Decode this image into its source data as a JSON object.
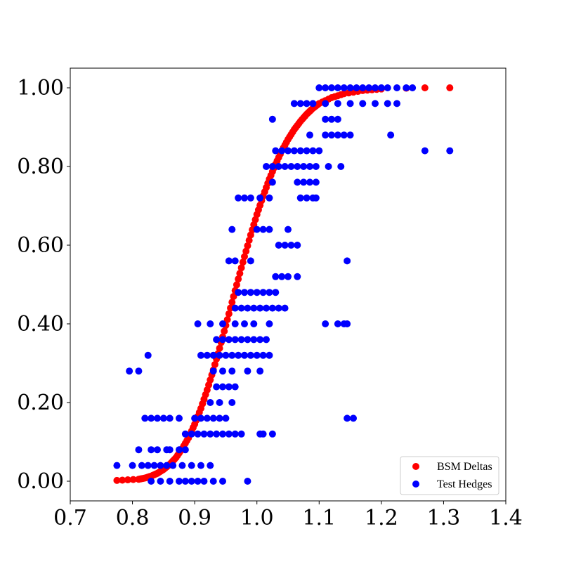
{
  "chart_data": {
    "type": "scatter",
    "title": "",
    "xlabel": "",
    "ylabel": "",
    "xlim": [
      0.7,
      1.4
    ],
    "ylim": [
      -0.05,
      1.05
    ],
    "x_ticks": [
      0.7,
      0.8,
      0.9,
      1.0,
      1.1,
      1.2,
      1.3,
      1.4
    ],
    "x_tick_labels": [
      "0.7",
      "0.8",
      "0.9",
      "1.0",
      "1.1",
      "1.2",
      "1.3",
      "1.4"
    ],
    "y_ticks": [
      0.0,
      0.2,
      0.4,
      0.6,
      0.8,
      1.0
    ],
    "y_tick_labels": [
      "0.00",
      "0.20",
      "0.40",
      "0.60",
      "0.80",
      "1.00"
    ],
    "grid": false,
    "legend_position": "bottom-right",
    "series": [
      {
        "name": "BSM Deltas",
        "color": "#ff0000",
        "points": [
          [
            0.775,
            0.002
          ],
          [
            0.81,
            0.005
          ],
          [
            0.82,
            0.008
          ],
          [
            0.83,
            0.013
          ],
          [
            0.84,
            0.02
          ],
          [
            0.85,
            0.03
          ],
          [
            0.86,
            0.043
          ],
          [
            0.87,
            0.06
          ],
          [
            0.88,
            0.083
          ],
          [
            0.89,
            0.11
          ],
          [
            0.9,
            0.145
          ],
          [
            0.91,
            0.185
          ],
          [
            0.92,
            0.232
          ],
          [
            0.93,
            0.283
          ],
          [
            0.94,
            0.338
          ],
          [
            0.95,
            0.396
          ],
          [
            0.96,
            0.455
          ],
          [
            0.97,
            0.514
          ],
          [
            0.98,
            0.571
          ],
          [
            0.99,
            0.626
          ],
          [
            1.0,
            0.678
          ],
          [
            1.01,
            0.725
          ],
          [
            1.02,
            0.768
          ],
          [
            1.03,
            0.806
          ],
          [
            1.04,
            0.84
          ],
          [
            1.05,
            0.869
          ],
          [
            1.06,
            0.894
          ],
          [
            1.07,
            0.915
          ],
          [
            1.08,
            0.933
          ],
          [
            1.09,
            0.948
          ],
          [
            1.1,
            0.96
          ],
          [
            1.12,
            0.975
          ],
          [
            1.14,
            0.985
          ],
          [
            1.17,
            0.993
          ],
          [
            1.2,
            0.997
          ],
          [
            1.24,
            0.999
          ],
          [
            1.27,
            1.0
          ],
          [
            1.31,
            1.0
          ]
        ]
      },
      {
        "name": "Test Hedges",
        "color": "#0000ff",
        "points": [
          [
            0.775,
            0.04
          ],
          [
            0.795,
            0.28
          ],
          [
            0.81,
            0.28
          ],
          [
            0.825,
            0.32
          ],
          [
            0.81,
            0.08
          ],
          [
            0.83,
            0.08
          ],
          [
            0.84,
            0.08
          ],
          [
            0.855,
            0.08
          ],
          [
            0.86,
            0.08
          ],
          [
            0.875,
            0.08
          ],
          [
            0.885,
            0.08
          ],
          [
            0.8,
            0.04
          ],
          [
            0.815,
            0.04
          ],
          [
            0.825,
            0.04
          ],
          [
            0.835,
            0.04
          ],
          [
            0.845,
            0.04
          ],
          [
            0.855,
            0.04
          ],
          [
            0.865,
            0.04
          ],
          [
            0.88,
            0.04
          ],
          [
            0.895,
            0.04
          ],
          [
            0.91,
            0.04
          ],
          [
            0.925,
            0.04
          ],
          [
            0.82,
            0.16
          ],
          [
            0.83,
            0.16
          ],
          [
            0.84,
            0.16
          ],
          [
            0.85,
            0.16
          ],
          [
            0.86,
            0.16
          ],
          [
            0.875,
            0.16
          ],
          [
            0.9,
            0.16
          ],
          [
            0.91,
            0.16
          ],
          [
            0.92,
            0.16
          ],
          [
            0.93,
            0.16
          ],
          [
            0.94,
            0.16
          ],
          [
            0.95,
            0.16
          ],
          [
            0.83,
            0.0
          ],
          [
            0.845,
            0.0
          ],
          [
            0.86,
            0.0
          ],
          [
            0.875,
            0.0
          ],
          [
            0.885,
            0.0
          ],
          [
            0.895,
            0.0
          ],
          [
            0.905,
            0.0
          ],
          [
            0.915,
            0.0
          ],
          [
            0.93,
            0.0
          ],
          [
            0.945,
            0.0
          ],
          [
            0.985,
            0.0
          ],
          [
            0.885,
            0.12
          ],
          [
            0.895,
            0.12
          ],
          [
            0.905,
            0.12
          ],
          [
            0.915,
            0.12
          ],
          [
            0.925,
            0.12
          ],
          [
            0.935,
            0.12
          ],
          [
            0.945,
            0.12
          ],
          [
            0.955,
            0.12
          ],
          [
            0.965,
            0.12
          ],
          [
            0.975,
            0.12
          ],
          [
            1.005,
            0.12
          ],
          [
            1.01,
            0.12
          ],
          [
            1.025,
            0.12
          ],
          [
            0.925,
            0.2
          ],
          [
            0.96,
            0.2
          ],
          [
            0.94,
            0.2
          ],
          [
            0.905,
            0.4
          ],
          [
            0.925,
            0.4
          ],
          [
            0.945,
            0.4
          ],
          [
            0.965,
            0.4
          ],
          [
            0.98,
            0.4
          ],
          [
            0.995,
            0.4
          ],
          [
            1.02,
            0.4
          ],
          [
            0.91,
            0.32
          ],
          [
            0.92,
            0.32
          ],
          [
            0.93,
            0.32
          ],
          [
            0.94,
            0.32
          ],
          [
            0.95,
            0.32
          ],
          [
            0.96,
            0.32
          ],
          [
            0.97,
            0.32
          ],
          [
            0.98,
            0.32
          ],
          [
            0.99,
            0.32
          ],
          [
            1.0,
            0.32
          ],
          [
            1.01,
            0.32
          ],
          [
            1.02,
            0.32
          ],
          [
            0.935,
            0.36
          ],
          [
            0.945,
            0.36
          ],
          [
            0.955,
            0.36
          ],
          [
            0.965,
            0.36
          ],
          [
            0.975,
            0.36
          ],
          [
            0.985,
            0.36
          ],
          [
            0.995,
            0.36
          ],
          [
            1.005,
            0.36
          ],
          [
            1.015,
            0.36
          ],
          [
            0.93,
            0.28
          ],
          [
            0.945,
            0.28
          ],
          [
            0.96,
            0.28
          ],
          [
            0.985,
            0.28
          ],
          [
            1.005,
            0.28
          ],
          [
            0.935,
            0.24
          ],
          [
            0.945,
            0.24
          ],
          [
            0.955,
            0.24
          ],
          [
            0.965,
            0.24
          ],
          [
            0.97,
            0.48
          ],
          [
            0.98,
            0.48
          ],
          [
            0.99,
            0.48
          ],
          [
            1.0,
            0.48
          ],
          [
            1.01,
            0.48
          ],
          [
            1.02,
            0.48
          ],
          [
            1.03,
            0.48
          ],
          [
            0.965,
            0.44
          ],
          [
            0.975,
            0.44
          ],
          [
            0.985,
            0.44
          ],
          [
            0.995,
            0.44
          ],
          [
            1.005,
            0.44
          ],
          [
            1.015,
            0.44
          ],
          [
            1.025,
            0.44
          ],
          [
            1.035,
            0.44
          ],
          [
            1.045,
            0.44
          ],
          [
            0.955,
            0.56
          ],
          [
            0.965,
            0.56
          ],
          [
            0.99,
            0.56
          ],
          [
            1.03,
            0.52
          ],
          [
            1.04,
            0.52
          ],
          [
            1.05,
            0.52
          ],
          [
            1.065,
            0.52
          ],
          [
            0.96,
            0.64
          ],
          [
            1.0,
            0.64
          ],
          [
            1.01,
            0.64
          ],
          [
            1.02,
            0.64
          ],
          [
            1.05,
            0.64
          ],
          [
            1.035,
            0.6
          ],
          [
            1.045,
            0.6
          ],
          [
            1.055,
            0.6
          ],
          [
            1.065,
            0.6
          ],
          [
            0.97,
            0.72
          ],
          [
            0.98,
            0.72
          ],
          [
            0.99,
            0.72
          ],
          [
            1.005,
            0.72
          ],
          [
            1.02,
            0.72
          ],
          [
            1.07,
            0.72
          ],
          [
            1.08,
            0.72
          ],
          [
            1.09,
            0.72
          ],
          [
            1.095,
            0.72
          ],
          [
            1.025,
            0.76
          ],
          [
            1.065,
            0.76
          ],
          [
            1.075,
            0.76
          ],
          [
            1.085,
            0.76
          ],
          [
            1.095,
            0.76
          ],
          [
            1.015,
            0.8
          ],
          [
            1.025,
            0.8
          ],
          [
            1.035,
            0.8
          ],
          [
            1.045,
            0.8
          ],
          [
            1.055,
            0.8
          ],
          [
            1.065,
            0.8
          ],
          [
            1.075,
            0.8
          ],
          [
            1.085,
            0.8
          ],
          [
            1.095,
            0.8
          ],
          [
            1.115,
            0.8
          ],
          [
            1.135,
            0.8
          ],
          [
            1.03,
            0.84
          ],
          [
            1.04,
            0.84
          ],
          [
            1.05,
            0.84
          ],
          [
            1.06,
            0.84
          ],
          [
            1.07,
            0.84
          ],
          [
            1.08,
            0.84
          ],
          [
            1.09,
            0.84
          ],
          [
            1.1,
            0.84
          ],
          [
            1.085,
            0.88
          ],
          [
            1.11,
            0.88
          ],
          [
            1.12,
            0.88
          ],
          [
            1.13,
            0.88
          ],
          [
            1.14,
            0.88
          ],
          [
            1.15,
            0.88
          ],
          [
            1.215,
            0.88
          ],
          [
            1.025,
            0.92
          ],
          [
            1.11,
            0.92
          ],
          [
            1.12,
            0.92
          ],
          [
            1.13,
            0.92
          ],
          [
            1.06,
            0.96
          ],
          [
            1.07,
            0.96
          ],
          [
            1.08,
            0.96
          ],
          [
            1.09,
            0.96
          ],
          [
            1.11,
            0.96
          ],
          [
            1.13,
            0.96
          ],
          [
            1.15,
            0.96
          ],
          [
            1.17,
            0.96
          ],
          [
            1.19,
            0.96
          ],
          [
            1.21,
            0.96
          ],
          [
            1.225,
            0.96
          ],
          [
            1.1,
            1.0
          ],
          [
            1.11,
            1.0
          ],
          [
            1.12,
            1.0
          ],
          [
            1.13,
            1.0
          ],
          [
            1.14,
            1.0
          ],
          [
            1.15,
            1.0
          ],
          [
            1.16,
            1.0
          ],
          [
            1.17,
            1.0
          ],
          [
            1.18,
            1.0
          ],
          [
            1.19,
            1.0
          ],
          [
            1.2,
            1.0
          ],
          [
            1.21,
            1.0
          ],
          [
            1.225,
            1.0
          ],
          [
            1.24,
            1.0
          ],
          [
            1.25,
            1.0
          ],
          [
            1.11,
            0.4
          ],
          [
            1.13,
            0.4
          ],
          [
            1.14,
            0.4
          ],
          [
            1.145,
            0.4
          ],
          [
            1.145,
            0.56
          ],
          [
            1.145,
            0.16
          ],
          [
            1.155,
            0.16
          ],
          [
            1.27,
            0.84
          ],
          [
            1.31,
            0.84
          ]
        ]
      }
    ]
  }
}
